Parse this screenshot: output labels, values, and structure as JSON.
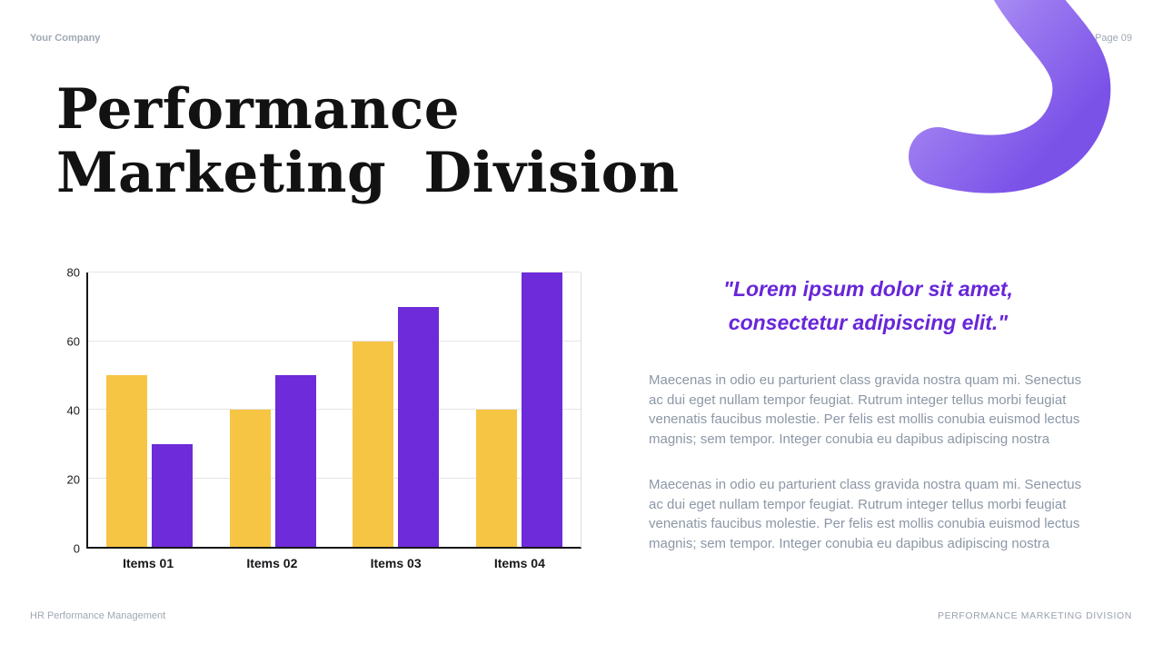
{
  "header": {
    "company": "Your Company",
    "page": "Page 09"
  },
  "title": {
    "line1": "Performance",
    "line2": "Marketing Division"
  },
  "quote": {
    "line1": "\"Lorem ipsum dolor sit amet,",
    "line2": "consectetur adipiscing elit.\""
  },
  "paragraphs": [
    "Maecenas in odio eu parturient class gravida nostra quam mi. Senectus ac dui eget nullam tempor feugiat. Rutrum integer tellus morbi feugiat venenatis faucibus molestie. Per felis est mollis conubia euismod lectus magnis; sem tempor. Integer conubia eu dapibus adipiscing nostra",
    "Maecenas in odio eu parturient class gravida nostra quam mi. Senectus ac dui eget nullam tempor feugiat. Rutrum integer tellus morbi feugiat venenatis faucibus molestie. Per felis est mollis conubia euismod lectus magnis; sem tempor. Integer conubia eu dapibus adipiscing nostra"
  ],
  "footer": {
    "left": "HR Performance Management",
    "right": "PERFORMANCE MARKETING DIVISION"
  },
  "colors": {
    "quote": "#6826d9",
    "gray_text": "#8c97a6",
    "muted": "#9fa8b4",
    "ribbon_light": "#c9b8fa",
    "ribbon_dark": "#7b52e8"
  },
  "chart_data": {
    "type": "bar",
    "categories": [
      "Items 01",
      "Items 02",
      "Items 03",
      "Items 04"
    ],
    "series": [
      {
        "name": "yellow",
        "color": "#f7c544",
        "values": [
          50,
          40,
          60,
          40
        ]
      },
      {
        "name": "purple",
        "color": "#6d2bd9",
        "values": [
          30,
          50,
          70,
          80
        ]
      }
    ],
    "title": "",
    "xlabel": "",
    "ylabel": "",
    "ylim": [
      0,
      80
    ],
    "yticks": [
      0,
      20,
      40,
      60,
      80
    ],
    "grid": true,
    "legend": "none"
  }
}
